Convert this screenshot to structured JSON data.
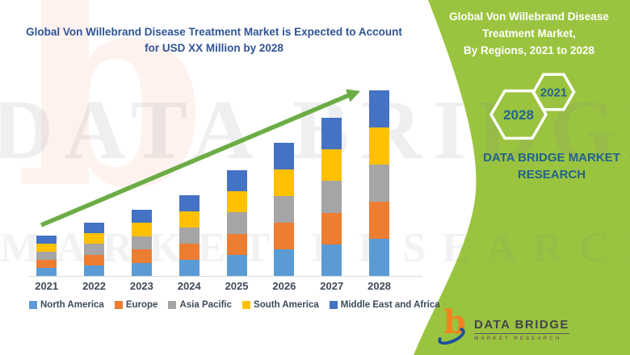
{
  "title": {
    "line1": "Global Von Willebrand Disease Treatment Market is Expected to Account",
    "line2": "for USD XX Million by 2028"
  },
  "right_panel": {
    "heading_line1": "Global Von Willebrand Disease",
    "heading_line2": "Treatment Market,",
    "heading_line3": "By Regions, 2021 to 2028",
    "hex_year_large": "2028",
    "hex_year_small": "2021",
    "brand_line1": "DATA BRIDGE MARKET",
    "brand_line2": "RESEARCH",
    "panel_color": "#9AC43F"
  },
  "logo": {
    "glyph": "b",
    "name": "DATA BRIDGE",
    "tagline": "MARKET RESEARCH"
  },
  "watermark": {
    "glyph": "b",
    "line1": "DATA BRIDGE",
    "line2": "MARKET RESEARCH"
  },
  "colors": {
    "title_blue": "#2F5496",
    "axis_text": "#3E4A59",
    "axis_line": "#D9D9D9",
    "arrow_green": "#6BAD45",
    "panel_green": "#9AC43F",
    "hex_text_blue": "#26648E"
  },
  "chart_data": {
    "type": "bar",
    "stacked": true,
    "title": "Global Von Willebrand Disease Treatment Market is Expected to Account for USD XX Million by 2028",
    "xlabel": "",
    "ylabel": "",
    "y_axis_visible": false,
    "unit_note": "USD XX Million (numeric axis not shown; values are relative estimates from bar heights)",
    "legend_position": "bottom",
    "trend_arrow": true,
    "categories": [
      "2021",
      "2022",
      "2023",
      "2024",
      "2025",
      "2026",
      "2027",
      "2028"
    ],
    "totals": [
      50,
      66,
      82,
      100,
      131,
      165,
      196,
      230
    ],
    "series": [
      {
        "name": "North America",
        "color": "#5B9BD5",
        "values": [
          10,
          13.2,
          16.4,
          20,
          26.2,
          33,
          39.2,
          46
        ]
      },
      {
        "name": "Europe",
        "color": "#ED7D31",
        "values": [
          10,
          13.2,
          16.4,
          20,
          26.2,
          33,
          39.2,
          46
        ]
      },
      {
        "name": "Asia Pacific",
        "color": "#A5A5A5",
        "values": [
          10,
          13.2,
          16.4,
          20,
          26.2,
          33,
          39.2,
          46
        ]
      },
      {
        "name": "South America",
        "color": "#FFC000",
        "values": [
          10,
          13.2,
          16.4,
          20,
          26.2,
          33,
          39.2,
          46
        ]
      },
      {
        "name": "Middle East and Africa",
        "color": "#4472C4",
        "values": [
          10,
          13.2,
          16.4,
          20,
          26.2,
          33,
          39.2,
          46
        ]
      }
    ]
  }
}
